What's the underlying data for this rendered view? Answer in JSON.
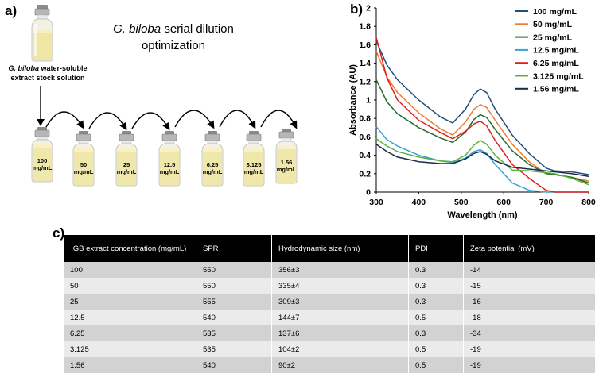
{
  "panel_labels": {
    "a": "a)",
    "b": "b)",
    "c": "c)"
  },
  "panel_a": {
    "title_italic": "G. biloba",
    "title_rest": " serial dilution optimization",
    "stock_caption_italic": "G. biloba",
    "stock_caption_rest": " water-soluble extract stock solution",
    "vials": [
      {
        "value": "100",
        "unit": "mg/mL"
      },
      {
        "value": "50",
        "unit": "mg/mL"
      },
      {
        "value": "25",
        "unit": "mg/mL"
      },
      {
        "value": "12.5",
        "unit": "mg/mL"
      },
      {
        "value": "6.25",
        "unit": "mg/mL"
      },
      {
        "value": "3.125",
        "unit": "mg/mL"
      },
      {
        "value": "1.56",
        "unit": "mg/mL"
      }
    ]
  },
  "chart_data": {
    "type": "line",
    "xlabel": "Wavelength (nm)",
    "ylabel": "Absorbance (AU)",
    "xlim": [
      300,
      800
    ],
    "ylim": [
      0,
      2
    ],
    "xticks": [
      "300",
      "400",
      "500",
      "600",
      "700",
      "800"
    ],
    "yticks": [
      "0",
      "0.2",
      "0.4",
      "0.6",
      "0.8",
      "1",
      "1.2",
      "1.4",
      "1.6",
      "1.8",
      "2"
    ],
    "legend_position": "top-right",
    "x": [
      300,
      325,
      350,
      400,
      450,
      480,
      510,
      530,
      545,
      560,
      580,
      620,
      660,
      700,
      720,
      760,
      800
    ],
    "series": [
      {
        "name": "100 mg/mL",
        "color": "#1f4e79",
        "values": [
          1.64,
          1.38,
          1.22,
          1.0,
          0.82,
          0.75,
          0.9,
          1.06,
          1.12,
          1.08,
          0.9,
          0.62,
          0.42,
          0.26,
          0.23,
          0.22,
          0.19
        ]
      },
      {
        "name": "50 mg/mL",
        "color": "#ed7d31",
        "values": [
          1.53,
          1.25,
          1.08,
          0.86,
          0.69,
          0.62,
          0.76,
          0.9,
          0.95,
          0.92,
          0.78,
          0.52,
          0.33,
          0.2,
          0.19,
          0.16,
          0.12
        ]
      },
      {
        "name": "25 mg/mL",
        "color": "#276b2a",
        "values": [
          1.22,
          0.98,
          0.85,
          0.7,
          0.59,
          0.54,
          0.65,
          0.79,
          0.84,
          0.81,
          0.68,
          0.45,
          0.3,
          0.2,
          0.19,
          0.16,
          0.1
        ]
      },
      {
        "name": "12.5 mg/mL",
        "color": "#35a3d6",
        "values": [
          0.71,
          0.57,
          0.5,
          0.4,
          0.34,
          0.32,
          0.37,
          0.44,
          0.46,
          0.42,
          0.3,
          0.1,
          0.02,
          0.0,
          0.0,
          0.0,
          0.0
        ]
      },
      {
        "name": "6.25 mg/mL",
        "color": "#e02020",
        "values": [
          1.68,
          1.24,
          1.0,
          0.78,
          0.65,
          0.58,
          0.66,
          0.74,
          0.77,
          0.72,
          0.56,
          0.3,
          0.15,
          0.02,
          0.0,
          0.0,
          0.0
        ]
      },
      {
        "name": "3.125 mg/mL",
        "color": "#5cb33a",
        "values": [
          0.58,
          0.5,
          0.44,
          0.38,
          0.34,
          0.33,
          0.4,
          0.51,
          0.56,
          0.52,
          0.4,
          0.24,
          0.23,
          0.21,
          0.2,
          0.15,
          0.08
        ]
      },
      {
        "name": "1.56 mg/mL",
        "color": "#1a2a4a",
        "values": [
          0.52,
          0.44,
          0.38,
          0.33,
          0.31,
          0.31,
          0.36,
          0.42,
          0.44,
          0.41,
          0.34,
          0.27,
          0.25,
          0.23,
          0.22,
          0.2,
          0.17
        ]
      }
    ]
  },
  "table": {
    "headers": [
      "GB extract concentration (mg/mL)",
      "SPR",
      "Hydrodynamic size (nm)",
      "PDI",
      "Zeta potential (mV)"
    ],
    "rows": [
      [
        "100",
        "550",
        "356±3",
        "0.3",
        "-14"
      ],
      [
        "50",
        "550",
        "335±4",
        "0.3",
        "-15"
      ],
      [
        "25",
        "555",
        "309±3",
        "0.3",
        "-16"
      ],
      [
        "12.5",
        "540",
        "144±7",
        "0.5",
        "-18"
      ],
      [
        "6.25",
        "535",
        "137±6",
        "0.3",
        "-34"
      ],
      [
        "3.125",
        "535",
        "104±2",
        "0.5",
        "-19"
      ],
      [
        "1.56",
        "540",
        "90±2",
        "0.5",
        "-19"
      ]
    ]
  }
}
